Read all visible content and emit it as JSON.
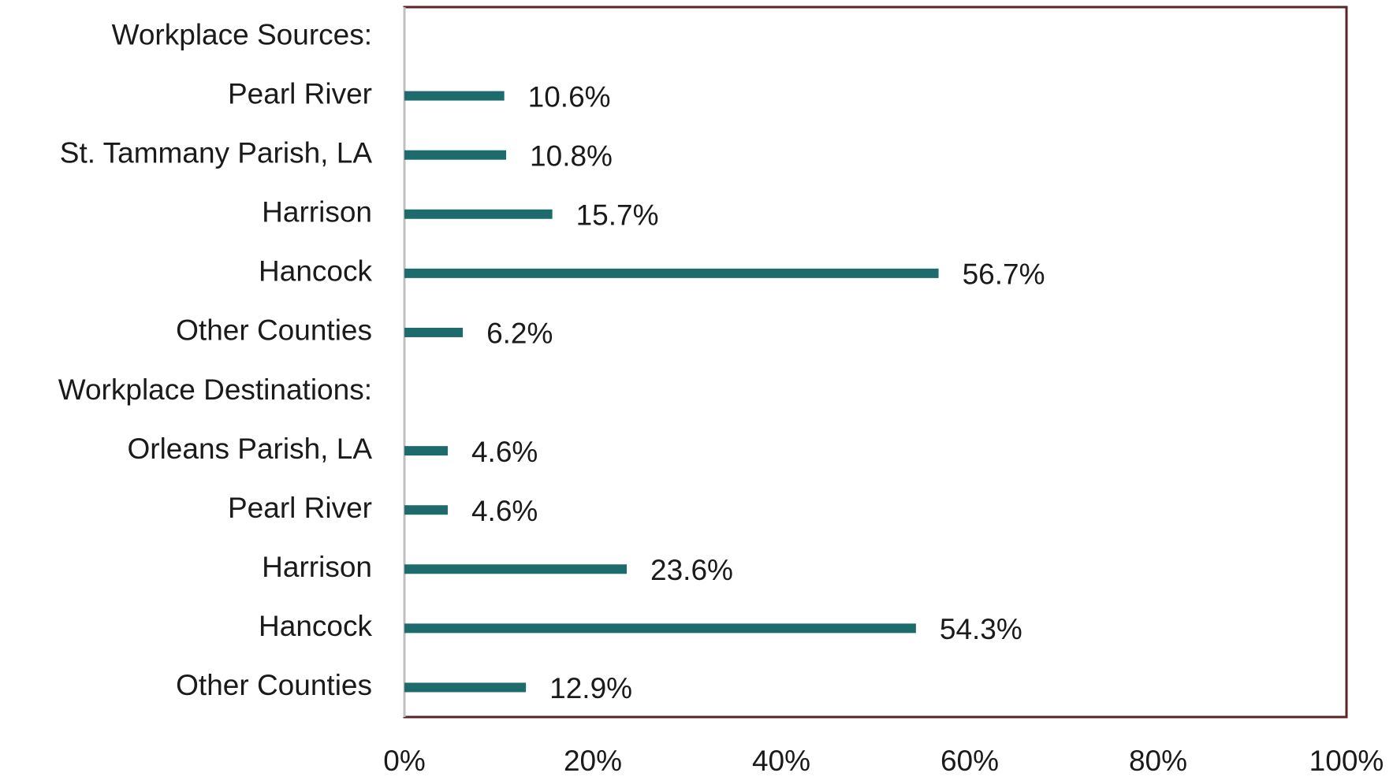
{
  "chart_data": {
    "type": "barh",
    "categories": [
      "Workplace Sources:",
      "Pearl River",
      "St. Tammany Parish, LA",
      "Harrison",
      "Hancock",
      "Other Counties",
      "Workplace Destinations:",
      "Orleans Parish, LA",
      "Pearl River",
      "Harrison",
      "Hancock",
      "Other Counties"
    ],
    "values": [
      null,
      10.6,
      10.8,
      15.7,
      56.7,
      6.2,
      null,
      4.6,
      4.6,
      23.6,
      54.3,
      12.9
    ],
    "value_labels": [
      null,
      "10.6%",
      "10.8%",
      "15.7%",
      "56.7%",
      "6.2%",
      null,
      "4.6%",
      "4.6%",
      "23.6%",
      "54.3%",
      "12.9%"
    ],
    "color": "#1e6b6e",
    "xlim": [
      0,
      100
    ],
    "xticks": [
      {
        "value": 0,
        "label": "0%"
      },
      {
        "value": 20,
        "label": "20%"
      },
      {
        "value": 40,
        "label": "40%"
      },
      {
        "value": 60,
        "label": "60%"
      },
      {
        "value": 80,
        "label": "80%"
      },
      {
        "value": 100,
        "label": "100%"
      }
    ],
    "grid": false
  }
}
